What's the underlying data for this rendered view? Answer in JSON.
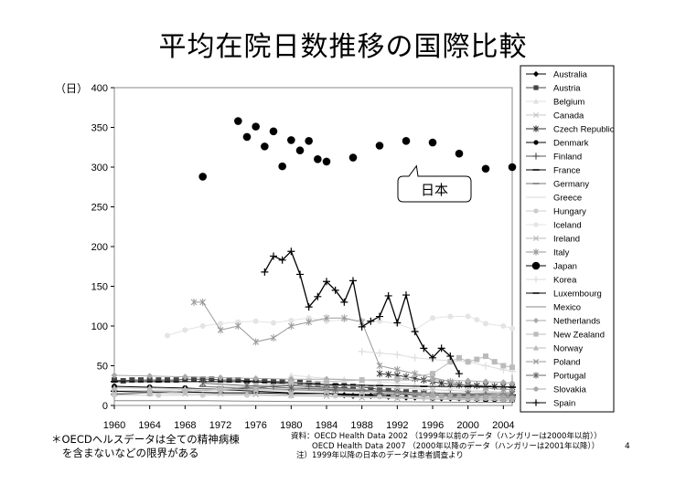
{
  "title": "平均在院日数推移の国際比較",
  "notes": {
    "left_line1": "＊OECDヘルスデータは全ての精神病棟",
    "left_line2": "を含まないなどの限界がある",
    "source_line1": "資料：OECD Health Data 2002 （1999年以前のデータ（ハンガリーは2000年以前））",
    "source_line2": "OECD Health Data 2007 （2000年以降のデータ（ハンガリーは2001年以降））",
    "source_line3": "注）1999年以降の日本のデータは患者調査より"
  },
  "page_number": "4",
  "chart_data": {
    "type": "line",
    "title": "",
    "ylabel": "（日）",
    "xlabel": "",
    "ylim": [
      0,
      400
    ],
    "xlim": [
      1960,
      2005
    ],
    "yticks": [
      0,
      50,
      100,
      150,
      200,
      250,
      300,
      350,
      400
    ],
    "xticks": [
      1960,
      1964,
      1968,
      1972,
      1976,
      1980,
      1984,
      1988,
      1992,
      1996,
      2000,
      2004
    ],
    "grid": false,
    "legend_position": "right",
    "callout": {
      "text": "日本",
      "x": 1995,
      "y": 270,
      "points_to_x": 1995,
      "points_to_y": 305
    },
    "series": [
      {
        "name": "Australia",
        "color": "#000000",
        "marker": "diamond",
        "x": [
          1985,
          1986,
          1987,
          1988,
          1989,
          1990,
          1991,
          1992,
          1993,
          1994,
          1995,
          1996,
          1997,
          1998,
          1999,
          2000,
          2001,
          2002,
          2003,
          2004,
          2005
        ],
        "y": [
          13,
          13,
          12,
          12,
          12,
          12,
          11,
          11,
          10,
          10,
          10,
          9,
          9,
          9,
          9,
          8,
          8,
          8,
          7,
          7,
          7
        ]
      },
      {
        "name": "Austria",
        "color": "#444444",
        "marker": "square",
        "x": [
          1960,
          1961,
          1962,
          1963,
          1964,
          1965,
          1966,
          1967,
          1968,
          1969,
          1970,
          1971,
          1972,
          1973,
          1974,
          1975,
          1976,
          1977,
          1978,
          1979,
          1980,
          1981,
          1982,
          1983,
          1984,
          1985,
          1986,
          1987,
          1988,
          1989,
          1990,
          1991,
          1992,
          1993,
          1994,
          1995,
          1996,
          1997,
          1998,
          1999,
          2000,
          2001,
          2002,
          2003,
          2004,
          2005
        ],
        "y": [
          32,
          31,
          32,
          32,
          32,
          32,
          32,
          32,
          33,
          33,
          33,
          33,
          32,
          32,
          32,
          31,
          31,
          31,
          30,
          30,
          29,
          29,
          28,
          27,
          26,
          25,
          25,
          24,
          23,
          22,
          20,
          19,
          18,
          17,
          16,
          15,
          13,
          12,
          11,
          10,
          10,
          9,
          9,
          9,
          9,
          8
        ]
      },
      {
        "name": "Belgium",
        "color": "#e0e0e0",
        "marker": "triangle",
        "x": [
          1980,
          1982,
          1984,
          1986,
          1988,
          1990,
          1992,
          1994,
          1996,
          1998,
          2000,
          2002,
          2004,
          2005
        ],
        "y": [
          38,
          36,
          34,
          33,
          32,
          30,
          28,
          26,
          24,
          22,
          20,
          18,
          17,
          17
        ]
      },
      {
        "name": "Canada",
        "color": "#c8c8c8",
        "marker": "x",
        "x": [
          1960,
          1964,
          1968,
          1972,
          1976,
          1980,
          1984,
          1988,
          1992,
          1996,
          2000,
          2002,
          2004,
          2005
        ],
        "y": [
          18,
          19,
          20,
          22,
          24,
          26,
          25,
          24,
          22,
          20,
          18,
          17,
          17,
          16
        ]
      },
      {
        "name": "Czech Republic",
        "color": "#333333",
        "marker": "star",
        "x": [
          1990,
          1991,
          1992,
          1993,
          1994,
          1995,
          1996,
          1997,
          1998,
          1999,
          2000,
          2001,
          2002,
          2003,
          2004,
          2005
        ],
        "y": [
          40,
          39,
          38,
          36,
          34,
          32,
          30,
          28,
          27,
          26,
          26,
          25,
          25,
          24,
          24,
          23
        ]
      },
      {
        "name": "Denmark",
        "color": "#000000",
        "marker": "circle",
        "x": [
          1960,
          1964,
          1968,
          1972,
          1976,
          1980,
          1984,
          1988,
          1992,
          1996,
          2000,
          2002,
          2004,
          2005
        ],
        "y": [
          24,
          23,
          22,
          20,
          18,
          16,
          15,
          13,
          11,
          9,
          8,
          7,
          7,
          7
        ]
      },
      {
        "name": "Finland",
        "color": "#555555",
        "marker": "plus",
        "x": [
          1960,
          1964,
          1968,
          1972,
          1976,
          1978,
          1980,
          1982,
          1984,
          1986,
          1988,
          1990,
          1992,
          1994,
          1996,
          1998,
          2000,
          2002,
          2004,
          2005
        ],
        "y": [
          14,
          16,
          18,
          20,
          22,
          24,
          25,
          24,
          23,
          22,
          20,
          18,
          16,
          14,
          14,
          14,
          14,
          14,
          13,
          13
        ]
      },
      {
        "name": "France",
        "color": "#000000",
        "marker": "dash",
        "x": [
          1960,
          1964,
          1968,
          1972,
          1976,
          1980,
          1984,
          1988,
          1992,
          1996,
          2000,
          2004,
          2005
        ],
        "y": [
          18,
          17,
          17,
          16,
          16,
          15,
          15,
          14,
          14,
          13,
          13,
          13,
          13
        ]
      },
      {
        "name": "Germany",
        "color": "#777777",
        "marker": "dash",
        "x": [
          1970,
          1972,
          1976,
          1980,
          1984,
          1988,
          1991,
          1992,
          1994,
          1996,
          1998,
          2000,
          2002,
          2004,
          2005
        ],
        "y": [
          24,
          23,
          22,
          20,
          19,
          18,
          14,
          14,
          13,
          12,
          12,
          11,
          10,
          10,
          10
        ]
      },
      {
        "name": "Greece",
        "color": "#d8d8d8",
        "marker": "none",
        "x": [
          1970,
          1975,
          1980,
          1985,
          1990,
          1995,
          2000,
          2005
        ],
        "y": [
          15,
          13,
          12,
          11,
          10,
          9,
          8,
          8
        ]
      },
      {
        "name": "Hungary",
        "color": "#cccccc",
        "marker": "circle",
        "x": [
          1960,
          1965,
          1970,
          1975,
          1980,
          1985,
          1990,
          1995,
          2000,
          2001,
          2002,
          2003,
          2004,
          2005
        ],
        "y": [
          13,
          13,
          13,
          13,
          12,
          12,
          11,
          10,
          9,
          9,
          9,
          9,
          8,
          8
        ]
      },
      {
        "name": "Iceland",
        "color": "#e4e4e4",
        "marker": "circle",
        "x": [
          1966,
          1968,
          1970,
          1972,
          1974,
          1976,
          1978,
          1980,
          1982,
          1984,
          1986,
          1988,
          1990,
          1992,
          1994,
          1996,
          1998,
          2000,
          2001,
          2002,
          2004,
          2005
        ],
        "y": [
          88,
          95,
          100,
          103,
          105,
          106,
          104,
          107,
          110,
          106,
          108,
          107,
          106,
          103,
          95,
          110,
          112,
          112,
          108,
          103,
          100,
          97
        ]
      },
      {
        "name": "Ireland",
        "color": "#bbbbbb",
        "marker": "x",
        "x": [
          1960,
          1964,
          1968,
          1972,
          1976,
          1980,
          1984,
          1988,
          1992,
          1996,
          2000,
          2004,
          2005
        ],
        "y": [
          16,
          16,
          15,
          15,
          14,
          13,
          12,
          10,
          9,
          8,
          7,
          7,
          7
        ]
      },
      {
        "name": "Italy",
        "color": "#999999",
        "marker": "star",
        "x": [
          1969,
          1970,
          1972,
          1974,
          1976,
          1978,
          1980,
          1982,
          1984,
          1986,
          1988,
          1990,
          1992,
          1994,
          1996,
          1998,
          2000,
          2002,
          2004,
          2005
        ],
        "y": [
          130,
          130,
          95,
          100,
          80,
          85,
          100,
          105,
          110,
          110,
          105,
          50,
          45,
          40,
          35,
          30,
          25,
          22,
          20,
          20
        ]
      },
      {
        "name": "Japan",
        "color": "#000000",
        "marker": "bigcircle",
        "line": false,
        "x": [
          1970,
          1974,
          1975,
          1976,
          1977,
          1978,
          1979,
          1980,
          1981,
          1982,
          1983,
          1984,
          1987,
          1990,
          1993,
          1996,
          1999,
          2002,
          2005
        ],
        "y": [
          288,
          358,
          338,
          351,
          326,
          345,
          301,
          334,
          321,
          333,
          310,
          307,
          312,
          327,
          333,
          331,
          317,
          298,
          300
        ]
      },
      {
        "name": "Korea",
        "color": "#dddddd",
        "marker": "plus",
        "x": [
          1988,
          1990,
          1992,
          1994,
          1996,
          1998,
          2000,
          2002,
          2004,
          2005
        ],
        "y": [
          68,
          66,
          64,
          60,
          58,
          56,
          55,
          50,
          45,
          43
        ]
      },
      {
        "name": "Luxembourg",
        "color": "#000000",
        "marker": "dash",
        "x": [
          1960,
          1965,
          1970,
          1975,
          1980,
          1985,
          1990,
          1995,
          2000,
          2005
        ],
        "y": [
          30,
          30,
          30,
          30,
          28,
          26,
          25,
          24,
          24,
          23
        ]
      },
      {
        "name": "Mexico",
        "color": "#888888",
        "marker": "none",
        "x": [
          1960,
          1970,
          1980,
          1990,
          2000,
          2005
        ],
        "y": [
          6,
          6,
          5,
          5,
          4,
          4
        ]
      },
      {
        "name": "Netherlands",
        "color": "#aaaaaa",
        "marker": "diamond",
        "x": [
          1960,
          1964,
          1968,
          1972,
          1976,
          1980,
          1984,
          1988,
          1992,
          1996,
          2000,
          2002,
          2004,
          2005
        ],
        "y": [
          38,
          37,
          36,
          35,
          34,
          33,
          33,
          32,
          32,
          32,
          31,
          30,
          29,
          28
        ]
      },
      {
        "name": "New Zealand",
        "color": "#bbbbbb",
        "marker": "square",
        "x": [
          1964,
          1968,
          1972,
          1976,
          1980,
          1984,
          1988,
          1992,
          1996,
          1998,
          1999,
          2000,
          2001,
          2002,
          2003,
          2004,
          2005
        ],
        "y": [
          15,
          18,
          20,
          25,
          28,
          30,
          32,
          33,
          40,
          55,
          60,
          55,
          58,
          62,
          55,
          50,
          48
        ]
      },
      {
        "name": "Norway",
        "color": "#bbbbbb",
        "marker": "triangle",
        "x": [
          1960,
          1964,
          1968,
          1972,
          1976,
          1980,
          1984,
          1988,
          1992,
          1996,
          2000,
          2004,
          2005
        ],
        "y": [
          22,
          22,
          21,
          20,
          20,
          19,
          18,
          17,
          16,
          15,
          14,
          13,
          13
        ]
      },
      {
        "name": "Poland",
        "color": "#999999",
        "marker": "x",
        "x": [
          1980,
          1984,
          1988,
          1990,
          1992,
          1994,
          1996,
          1998,
          2000,
          2002,
          2004,
          2005
        ],
        "y": [
          22,
          22,
          20,
          18,
          16,
          14,
          14,
          12,
          12,
          12,
          12,
          11
        ]
      },
      {
        "name": "Portugal",
        "color": "#666666",
        "marker": "star",
        "x": [
          1970,
          1975,
          1980,
          1985,
          1990,
          1995,
          2000,
          2005
        ],
        "y": [
          28,
          25,
          22,
          20,
          18,
          16,
          15,
          15
        ]
      },
      {
        "name": "Slovakia",
        "color": "#aaaaaa",
        "marker": "circle",
        "x": [
          1995,
          1996,
          1997,
          1998,
          1999,
          2000,
          2001,
          2002,
          2003,
          2004,
          2005
        ],
        "y": [
          13,
          13,
          12,
          12,
          11,
          11,
          10,
          10,
          10,
          9,
          9
        ]
      },
      {
        "name": "Spain",
        "color": "#000000",
        "marker": "plus",
        "x": [
          1977,
          1978,
          1979,
          1980,
          1981,
          1982,
          1983,
          1984,
          1985,
          1986,
          1987,
          1988,
          1989,
          1990,
          1991,
          1992,
          1993,
          1994,
          1995,
          1996,
          1997,
          1998,
          1999
        ],
        "y": [
          168,
          188,
          183,
          194,
          165,
          124,
          137,
          156,
          145,
          130,
          157,
          99,
          106,
          112,
          138,
          104,
          139,
          93,
          72,
          60,
          72,
          62,
          40
        ]
      }
    ]
  }
}
